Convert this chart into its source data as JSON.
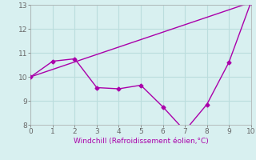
{
  "line1_x": [
    0,
    1,
    2,
    3,
    4,
    5,
    6,
    7,
    8,
    9,
    10
  ],
  "line1_y": [
    10.0,
    10.65,
    10.75,
    9.55,
    9.5,
    9.65,
    8.75,
    7.75,
    8.85,
    10.6,
    13.1
  ],
  "line2_x": [
    0,
    1,
    2,
    3,
    4,
    5,
    6,
    7,
    8,
    9,
    10
  ],
  "line2_y": [
    10.0,
    10.31,
    10.62,
    10.93,
    11.24,
    11.55,
    11.86,
    12.17,
    12.48,
    12.79,
    13.1
  ],
  "color": "#aa00aa",
  "background_color": "#d8f0f0",
  "xlabel": "Windchill (Refroidissement éolien,°C)",
  "xlim": [
    0,
    10
  ],
  "ylim": [
    8,
    13
  ],
  "yticks": [
    8,
    9,
    10,
    11,
    12,
    13
  ],
  "xticks": [
    0,
    1,
    2,
    3,
    4,
    5,
    6,
    7,
    8,
    9,
    10
  ],
  "grid_color": "#bbdddd",
  "marker": "D",
  "markersize": 2.5,
  "linewidth": 1.0
}
